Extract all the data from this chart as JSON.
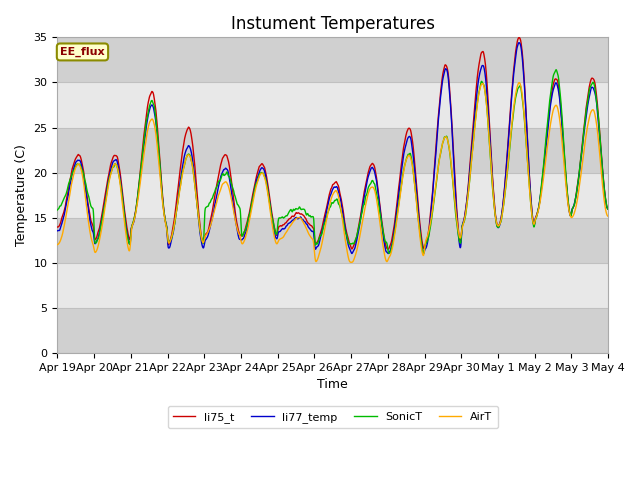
{
  "title": "Instument Temperatures",
  "xlabel": "Time",
  "ylabel": "Temperature (C)",
  "ylim": [
    0,
    35
  ],
  "background_color": "#ffffff",
  "plot_bg_color": "#dcdcdc",
  "band_color_light": "#e8e8e8",
  "band_color_dark": "#d0d0d0",
  "annotation_text": "EE_flux",
  "annotation_bg": "#ffffcc",
  "annotation_border": "#8b8b00",
  "legend_labels": [
    "li75_t",
    "li77_temp",
    "SonicT",
    "AirT"
  ],
  "line_colors": [
    "#cc0000",
    "#0000cc",
    "#00bb00",
    "#ffaa00"
  ],
  "x_tick_labels": [
    "Apr 19",
    "Apr 20",
    "Apr 21",
    "Apr 22",
    "Apr 23",
    "Apr 24",
    "Apr 25",
    "Apr 26",
    "Apr 27",
    "Apr 28",
    "Apr 29",
    "Apr 30",
    "May 1",
    "May 2",
    "May 3",
    "May 4"
  ],
  "grid_color": "#c0c0c0",
  "title_fontsize": 12,
  "axis_fontsize": 9,
  "tick_fontsize": 8
}
